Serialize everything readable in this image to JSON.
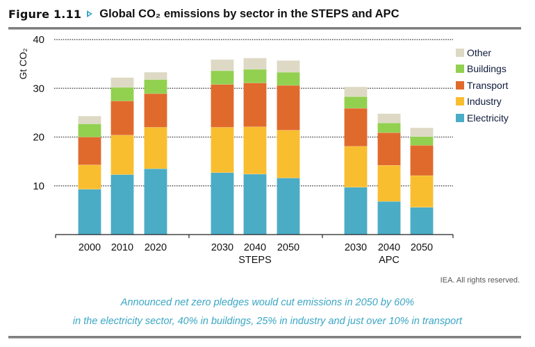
{
  "header": {
    "figure_number": "Figure 1.11",
    "title": "Global CO₂ emissions by sector in the STEPS and APC",
    "arrow_icon": "triangle-right-icon"
  },
  "colors": {
    "Electricity": "#4BACC6",
    "Industry": "#F9BE2F",
    "Transport": "#E06A2C",
    "Buildings": "#92D050",
    "Other": "#DDD9C4",
    "accent": "#3AA6C4"
  },
  "chart_data": {
    "type": "bar",
    "stacked": true,
    "title": "Global CO₂ emissions by sector in the STEPS and APC",
    "xlabel": "",
    "ylabel": "Gt CO₂",
    "ylim": [
      0,
      40
    ],
    "yticks": [
      10,
      20,
      30,
      40
    ],
    "grid": "horizontal-dotted",
    "legend_position": "right",
    "groups": [
      {
        "label": "",
        "categories": [
          "2000",
          "2010",
          "2020"
        ]
      },
      {
        "label": "STEPS",
        "categories": [
          "2030",
          "2040",
          "2050"
        ]
      },
      {
        "label": "APC",
        "categories": [
          "2030",
          "2040",
          "2050"
        ]
      }
    ],
    "categories": [
      "2000",
      "2010",
      "2020",
      "STEPS 2030",
      "STEPS 2040",
      "STEPS 2050",
      "APC 2030",
      "APC 2040",
      "APC 2050"
    ],
    "series": [
      {
        "name": "Electricity",
        "values": [
          9.3,
          12.3,
          13.5,
          12.7,
          12.4,
          11.6,
          9.7,
          6.8,
          5.6
        ]
      },
      {
        "name": "Industry",
        "values": [
          5.0,
          8.1,
          8.5,
          9.3,
          9.7,
          9.8,
          8.4,
          7.4,
          6.5
        ]
      },
      {
        "name": "Transport",
        "values": [
          5.7,
          7.0,
          6.9,
          8.8,
          9.0,
          9.2,
          7.8,
          6.7,
          6.2
        ]
      },
      {
        "name": "Buildings",
        "values": [
          2.7,
          2.8,
          2.9,
          2.8,
          2.8,
          2.7,
          2.4,
          2.0,
          1.8
        ]
      },
      {
        "name": "Other",
        "values": [
          1.6,
          2.0,
          1.5,
          2.3,
          2.3,
          2.4,
          2.0,
          1.9,
          1.8
        ]
      }
    ],
    "legend": [
      "Other",
      "Buildings",
      "Transport",
      "Industry",
      "Electricity"
    ]
  },
  "footer": {
    "credit": "IEA. All rights reserved.",
    "caption_line1": "Announced net zero pledges would cut emissions in 2050 by 60%",
    "caption_line2": "in the electricity sector, 40% in buildings, 25% in industry and just over 10% in transport"
  }
}
